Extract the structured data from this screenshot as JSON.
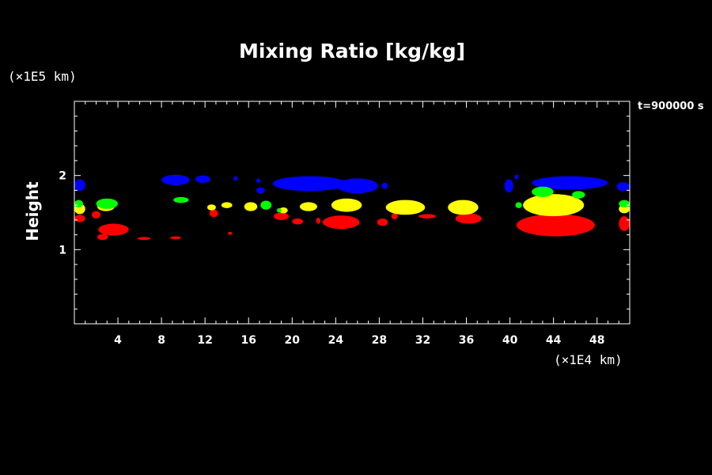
{
  "chart_data": {
    "type": "heatmap",
    "title": "Mixing Ratio [kg/kg]",
    "xlabel": "",
    "ylabel": "Height",
    "x_unit_label": "(×1E4 km)",
    "y_unit_label": "(×1E5 km)",
    "time_label": "t=900000 s",
    "xlim": [
      0,
      51
    ],
    "ylim": [
      0,
      3
    ],
    "x_ticks": [
      4,
      8,
      12,
      16,
      20,
      24,
      28,
      32,
      36,
      40,
      44,
      48
    ],
    "y_ticks": [
      1,
      2
    ],
    "colors": {
      "background": "#000000",
      "axis": "#ffffff",
      "blue": "#0000ff",
      "green": "#00ff00",
      "yellow": "#ffff00",
      "red": "#ff0000"
    },
    "regions": [
      {
        "color": "blue",
        "cx": 0.5,
        "cy": 1.87,
        "rx": 0.5,
        "ry": 0.08
      },
      {
        "color": "blue",
        "cx": 9.3,
        "cy": 1.94,
        "rx": 1.3,
        "ry": 0.07
      },
      {
        "color": "blue",
        "cx": 11.8,
        "cy": 1.95,
        "rx": 0.7,
        "ry": 0.05
      },
      {
        "color": "blue",
        "cx": 14.8,
        "cy": 1.96,
        "rx": 0.2,
        "ry": 0.03
      },
      {
        "color": "blue",
        "cx": 16.9,
        "cy": 1.93,
        "rx": 0.2,
        "ry": 0.03
      },
      {
        "color": "blue",
        "cx": 17.1,
        "cy": 1.8,
        "rx": 0.4,
        "ry": 0.04
      },
      {
        "color": "blue",
        "cx": 21.6,
        "cy": 1.89,
        "rx": 3.4,
        "ry": 0.1
      },
      {
        "color": "blue",
        "cx": 26.0,
        "cy": 1.86,
        "rx": 1.9,
        "ry": 0.1
      },
      {
        "color": "blue",
        "cx": 28.5,
        "cy": 1.86,
        "rx": 0.3,
        "ry": 0.04
      },
      {
        "color": "blue",
        "cx": 39.9,
        "cy": 1.86,
        "rx": 0.4,
        "ry": 0.09
      },
      {
        "color": "blue",
        "cx": 40.6,
        "cy": 1.98,
        "rx": 0.2,
        "ry": 0.03
      },
      {
        "color": "blue",
        "cx": 45.5,
        "cy": 1.9,
        "rx": 3.5,
        "ry": 0.09
      },
      {
        "color": "blue",
        "cx": 50.4,
        "cy": 1.85,
        "rx": 0.6,
        "ry": 0.06
      },
      {
        "color": "green",
        "cx": 0.4,
        "cy": 1.62,
        "rx": 0.4,
        "ry": 0.05
      },
      {
        "color": "green",
        "cx": 3.0,
        "cy": 1.62,
        "rx": 1.0,
        "ry": 0.07
      },
      {
        "color": "green",
        "cx": 9.8,
        "cy": 1.67,
        "rx": 0.7,
        "ry": 0.04
      },
      {
        "color": "green",
        "cx": 17.6,
        "cy": 1.6,
        "rx": 0.5,
        "ry": 0.06
      },
      {
        "color": "green",
        "cx": 18.8,
        "cy": 1.53,
        "rx": 0.2,
        "ry": 0.03
      },
      {
        "color": "green",
        "cx": 40.8,
        "cy": 1.6,
        "rx": 0.3,
        "ry": 0.04
      },
      {
        "color": "green",
        "cx": 43.0,
        "cy": 1.78,
        "rx": 1.0,
        "ry": 0.07
      },
      {
        "color": "green",
        "cx": 46.3,
        "cy": 1.74,
        "rx": 0.6,
        "ry": 0.05
      },
      {
        "color": "green",
        "cx": 50.5,
        "cy": 1.62,
        "rx": 0.5,
        "ry": 0.05
      },
      {
        "color": "yellow",
        "cx": 0.5,
        "cy": 1.55,
        "rx": 0.5,
        "ry": 0.07
      },
      {
        "color": "yellow",
        "cx": 2.9,
        "cy": 1.58,
        "rx": 0.8,
        "ry": 0.06
      },
      {
        "color": "yellow",
        "cx": 12.6,
        "cy": 1.57,
        "rx": 0.4,
        "ry": 0.04
      },
      {
        "color": "yellow",
        "cx": 14.0,
        "cy": 1.6,
        "rx": 0.5,
        "ry": 0.04
      },
      {
        "color": "yellow",
        "cx": 16.2,
        "cy": 1.58,
        "rx": 0.6,
        "ry": 0.06
      },
      {
        "color": "yellow",
        "cx": 19.2,
        "cy": 1.53,
        "rx": 0.4,
        "ry": 0.04
      },
      {
        "color": "yellow",
        "cx": 21.5,
        "cy": 1.58,
        "rx": 0.8,
        "ry": 0.06
      },
      {
        "color": "yellow",
        "cx": 25.0,
        "cy": 1.6,
        "rx": 1.4,
        "ry": 0.09
      },
      {
        "color": "yellow",
        "cx": 30.4,
        "cy": 1.57,
        "rx": 1.8,
        "ry": 0.1
      },
      {
        "color": "yellow",
        "cx": 35.7,
        "cy": 1.57,
        "rx": 1.4,
        "ry": 0.1
      },
      {
        "color": "yellow",
        "cx": 44.0,
        "cy": 1.6,
        "rx": 2.8,
        "ry": 0.15
      },
      {
        "color": "yellow",
        "cx": 50.5,
        "cy": 1.55,
        "rx": 0.5,
        "ry": 0.06
      },
      {
        "color": "red",
        "cx": 0.5,
        "cy": 1.42,
        "rx": 0.5,
        "ry": 0.05
      },
      {
        "color": "red",
        "cx": 2.0,
        "cy": 1.47,
        "rx": 0.4,
        "ry": 0.05
      },
      {
        "color": "red",
        "cx": 3.6,
        "cy": 1.27,
        "rx": 1.4,
        "ry": 0.08
      },
      {
        "color": "red",
        "cx": 2.6,
        "cy": 1.17,
        "rx": 0.5,
        "ry": 0.04
      },
      {
        "color": "red",
        "cx": 6.4,
        "cy": 1.15,
        "rx": 0.6,
        "ry": 0.02
      },
      {
        "color": "red",
        "cx": 9.3,
        "cy": 1.16,
        "rx": 0.5,
        "ry": 0.02
      },
      {
        "color": "red",
        "cx": 12.8,
        "cy": 1.49,
        "rx": 0.4,
        "ry": 0.05
      },
      {
        "color": "red",
        "cx": 14.3,
        "cy": 1.22,
        "rx": 0.2,
        "ry": 0.02
      },
      {
        "color": "red",
        "cx": 19.0,
        "cy": 1.45,
        "rx": 0.7,
        "ry": 0.05
      },
      {
        "color": "red",
        "cx": 20.5,
        "cy": 1.38,
        "rx": 0.5,
        "ry": 0.04
      },
      {
        "color": "red",
        "cx": 22.4,
        "cy": 1.39,
        "rx": 0.2,
        "ry": 0.04
      },
      {
        "color": "red",
        "cx": 24.5,
        "cy": 1.37,
        "rx": 1.7,
        "ry": 0.09
      },
      {
        "color": "red",
        "cx": 28.3,
        "cy": 1.37,
        "rx": 0.5,
        "ry": 0.05
      },
      {
        "color": "red",
        "cx": 29.4,
        "cy": 1.45,
        "rx": 0.3,
        "ry": 0.04
      },
      {
        "color": "red",
        "cx": 32.4,
        "cy": 1.45,
        "rx": 0.8,
        "ry": 0.03
      },
      {
        "color": "red",
        "cx": 36.2,
        "cy": 1.42,
        "rx": 1.2,
        "ry": 0.07
      },
      {
        "color": "red",
        "cx": 44.2,
        "cy": 1.33,
        "rx": 3.6,
        "ry": 0.15
      },
      {
        "color": "red",
        "cx": 50.5,
        "cy": 1.35,
        "rx": 0.5,
        "ry": 0.1
      }
    ]
  }
}
